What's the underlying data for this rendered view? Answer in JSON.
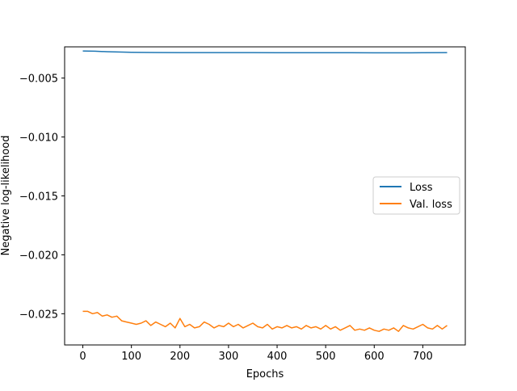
{
  "chart_data": {
    "type": "line",
    "title": "",
    "xlabel": "Epochs",
    "ylabel": "Negative log-likelihood",
    "xlim": [
      -37.5,
      787.5
    ],
    "ylim": [
      -0.02765,
      -0.00235
    ],
    "xticks": [
      0,
      100,
      200,
      300,
      400,
      500,
      600,
      700
    ],
    "yticks": [
      -0.025,
      -0.02,
      -0.015,
      -0.01,
      -0.005
    ],
    "ytick_labels": [
      "−0.025",
      "−0.020",
      "−0.015",
      "−0.010",
      "−0.005"
    ],
    "grid": false,
    "legend_position": "center-right",
    "series": [
      {
        "name": "Loss",
        "color": "#1f77b4",
        "x": [
          0,
          25,
          50,
          75,
          100,
          150,
          200,
          250,
          300,
          350,
          400,
          450,
          500,
          550,
          600,
          650,
          700,
          750
        ],
        "y": [
          -0.0027,
          -0.00272,
          -0.00276,
          -0.00279,
          -0.00281,
          -0.00283,
          -0.00284,
          -0.00284,
          -0.00284,
          -0.00284,
          -0.00285,
          -0.00285,
          -0.00285,
          -0.00285,
          -0.00286,
          -0.00286,
          -0.00285,
          -0.00284
        ]
      },
      {
        "name": "Val. loss",
        "color": "#ff7f0e",
        "x": [
          0,
          10,
          20,
          30,
          40,
          50,
          60,
          70,
          80,
          90,
          100,
          110,
          120,
          130,
          140,
          150,
          160,
          170,
          180,
          190,
          200,
          210,
          220,
          230,
          240,
          250,
          260,
          270,
          280,
          290,
          300,
          310,
          320,
          330,
          340,
          350,
          360,
          370,
          380,
          390,
          400,
          410,
          420,
          430,
          440,
          450,
          460,
          470,
          480,
          490,
          500,
          510,
          520,
          530,
          540,
          550,
          560,
          570,
          580,
          590,
          600,
          610,
          620,
          630,
          640,
          650,
          660,
          670,
          680,
          690,
          700,
          710,
          720,
          730,
          740,
          750
        ],
        "y": [
          -0.0248,
          -0.0248,
          -0.025,
          -0.0249,
          -0.0252,
          -0.0251,
          -0.0253,
          -0.0252,
          -0.0256,
          -0.0257,
          -0.0258,
          -0.0259,
          -0.0258,
          -0.0256,
          -0.026,
          -0.0257,
          -0.0259,
          -0.0261,
          -0.0258,
          -0.0262,
          -0.0254,
          -0.0261,
          -0.0259,
          -0.0262,
          -0.0261,
          -0.0257,
          -0.0259,
          -0.0262,
          -0.026,
          -0.0261,
          -0.0258,
          -0.0261,
          -0.0259,
          -0.0262,
          -0.026,
          -0.0258,
          -0.0261,
          -0.0262,
          -0.0259,
          -0.0263,
          -0.0261,
          -0.0262,
          -0.026,
          -0.0262,
          -0.0261,
          -0.0263,
          -0.026,
          -0.0262,
          -0.0261,
          -0.0263,
          -0.026,
          -0.0263,
          -0.0261,
          -0.0264,
          -0.0262,
          -0.026,
          -0.0264,
          -0.0263,
          -0.0264,
          -0.0262,
          -0.0264,
          -0.0265,
          -0.0263,
          -0.0264,
          -0.0262,
          -0.0265,
          -0.026,
          -0.0262,
          -0.0263,
          -0.0261,
          -0.0259,
          -0.0262,
          -0.0263,
          -0.026,
          -0.0263,
          -0.026
        ]
      }
    ]
  }
}
